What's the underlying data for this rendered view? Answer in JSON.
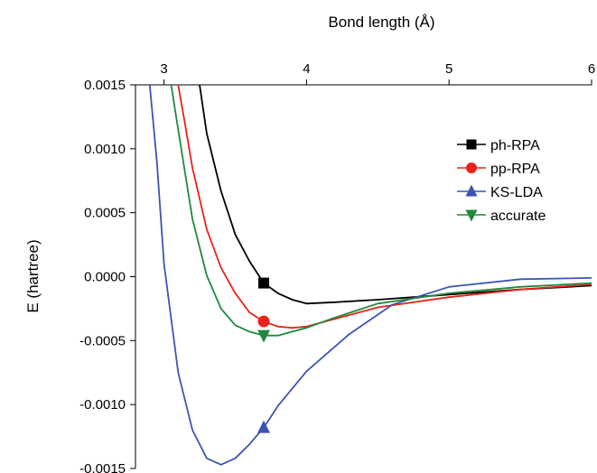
{
  "chart_data": {
    "type": "line",
    "xlabel": "Bond length (Å)",
    "ylabel": "E (hartree)",
    "xlim": [
      2.8,
      6.0
    ],
    "ylim": [
      -0.0015,
      0.0015
    ],
    "x_axis_position": "top",
    "x_ticks": [
      3,
      4,
      5,
      6
    ],
    "x_tick_labels": [
      "3",
      "4",
      "5",
      "6"
    ],
    "y_ticks": [
      0.0015,
      0.001,
      0.0005,
      0.0,
      -0.0005,
      -0.001,
      -0.0015
    ],
    "y_tick_labels": [
      "0.0015",
      "0.0010",
      "0.0005",
      "0.0000",
      "-0.0005",
      "-0.0010",
      "-0.0015"
    ],
    "grid": false,
    "legend_position": "right",
    "series": [
      {
        "name": "ph-RPA",
        "color": "#000000",
        "marker": "square",
        "marker_x": 3.7,
        "x": [
          3.25,
          3.3,
          3.4,
          3.5,
          3.6,
          3.7,
          3.8,
          3.9,
          4.0,
          4.2,
          4.5,
          5.0,
          5.5,
          6.0
        ],
        "y": [
          0.0015,
          0.00112,
          0.00067,
          0.00033,
          0.00012,
          -5e-05,
          -0.00013,
          -0.00018,
          -0.00021,
          -0.0002,
          -0.00018,
          -0.00014,
          -0.0001,
          -7e-05
        ]
      },
      {
        "name": "pp-RPA",
        "color": "#e8231c",
        "marker": "circle",
        "marker_x": 3.7,
        "x": [
          3.1,
          3.15,
          3.2,
          3.3,
          3.4,
          3.5,
          3.6,
          3.7,
          3.8,
          3.9,
          4.0,
          4.2,
          4.5,
          5.0,
          5.5,
          6.0
        ],
        "y": [
          0.0015,
          0.00118,
          0.00085,
          0.00037,
          7e-05,
          -0.00013,
          -0.00028,
          -0.00035,
          -0.00039,
          -0.0004,
          -0.00039,
          -0.00033,
          -0.00024,
          -0.00016,
          -0.0001,
          -6e-05
        ]
      },
      {
        "name": "KS-LDA",
        "color": "#3b55b4",
        "marker": "triangle-up",
        "marker_x": 3.7,
        "x": [
          2.9,
          2.95,
          3.0,
          3.1,
          3.2,
          3.3,
          3.4,
          3.5,
          3.6,
          3.7,
          3.8,
          4.0,
          4.3,
          4.6,
          5.0,
          5.5,
          6.0
        ],
        "y": [
          0.0015,
          0.0009,
          0.0001,
          -0.00075,
          -0.0012,
          -0.00142,
          -0.00147,
          -0.00142,
          -0.00131,
          -0.00118,
          -0.00101,
          -0.00074,
          -0.00045,
          -0.00022,
          -8e-05,
          -2e-05,
          -1e-05
        ]
      },
      {
        "name": "accurate",
        "color": "#1e8a3c",
        "marker": "triangle-down",
        "marker_x": 3.7,
        "x": [
          3.05,
          3.1,
          3.2,
          3.3,
          3.4,
          3.5,
          3.6,
          3.7,
          3.8,
          3.9,
          4.0,
          4.2,
          4.5,
          5.0,
          5.5,
          6.0
        ],
        "y": [
          0.0015,
          0.00115,
          0.00045,
          1e-05,
          -0.00025,
          -0.00038,
          -0.00043,
          -0.00046,
          -0.00046,
          -0.00043,
          -0.0004,
          -0.00032,
          -0.00021,
          -0.00013,
          -8e-05,
          -5e-05
        ]
      }
    ]
  }
}
